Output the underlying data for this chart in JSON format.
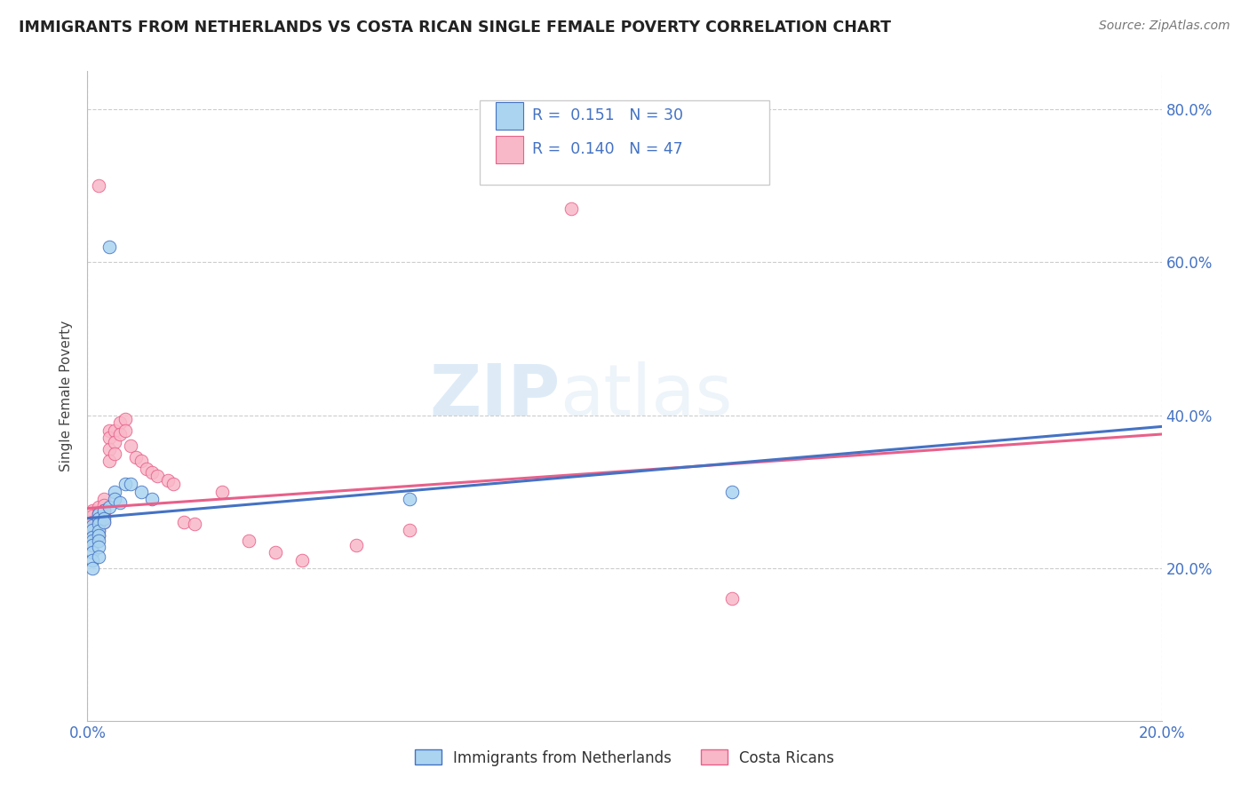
{
  "title": "IMMIGRANTS FROM NETHERLANDS VS COSTA RICAN SINGLE FEMALE POVERTY CORRELATION CHART",
  "source": "Source: ZipAtlas.com",
  "ylabel_label": "Single Female Poverty",
  "legend_label1": "Immigrants from Netherlands",
  "legend_label2": "Costa Ricans",
  "r1": "0.151",
  "n1": "30",
  "r2": "0.140",
  "n2": "47",
  "xlim": [
    0.0,
    0.2
  ],
  "ylim": [
    0.0,
    0.85
  ],
  "color_blue": "#aad4f0",
  "color_pink": "#f9b8c8",
  "line_blue": "#4472C4",
  "line_pink": "#e8608a",
  "watermark_zip": "ZIP",
  "watermark_atlas": "atlas",
  "blue_scatter": [
    [
      0.001,
      0.255
    ],
    [
      0.001,
      0.25
    ],
    [
      0.001,
      0.24
    ],
    [
      0.001,
      0.235
    ],
    [
      0.001,
      0.23
    ],
    [
      0.001,
      0.22
    ],
    [
      0.001,
      0.21
    ],
    [
      0.001,
      0.2
    ],
    [
      0.002,
      0.27
    ],
    [
      0.002,
      0.265
    ],
    [
      0.002,
      0.258
    ],
    [
      0.002,
      0.248
    ],
    [
      0.002,
      0.242
    ],
    [
      0.002,
      0.235
    ],
    [
      0.002,
      0.228
    ],
    [
      0.002,
      0.215
    ],
    [
      0.003,
      0.275
    ],
    [
      0.003,
      0.265
    ],
    [
      0.003,
      0.26
    ],
    [
      0.004,
      0.62
    ],
    [
      0.004,
      0.28
    ],
    [
      0.005,
      0.3
    ],
    [
      0.005,
      0.29
    ],
    [
      0.006,
      0.285
    ],
    [
      0.007,
      0.31
    ],
    [
      0.008,
      0.31
    ],
    [
      0.01,
      0.3
    ],
    [
      0.012,
      0.29
    ],
    [
      0.06,
      0.29
    ],
    [
      0.12,
      0.3
    ]
  ],
  "pink_scatter": [
    [
      0.001,
      0.275
    ],
    [
      0.001,
      0.268
    ],
    [
      0.001,
      0.26
    ],
    [
      0.001,
      0.252
    ],
    [
      0.001,
      0.245
    ],
    [
      0.001,
      0.238
    ],
    [
      0.002,
      0.28
    ],
    [
      0.002,
      0.272
    ],
    [
      0.002,
      0.265
    ],
    [
      0.002,
      0.258
    ],
    [
      0.002,
      0.25
    ],
    [
      0.002,
      0.243
    ],
    [
      0.002,
      0.7
    ],
    [
      0.003,
      0.29
    ],
    [
      0.003,
      0.282
    ],
    [
      0.003,
      0.275
    ],
    [
      0.003,
      0.268
    ],
    [
      0.003,
      0.26
    ],
    [
      0.004,
      0.38
    ],
    [
      0.004,
      0.37
    ],
    [
      0.004,
      0.355
    ],
    [
      0.004,
      0.34
    ],
    [
      0.005,
      0.38
    ],
    [
      0.005,
      0.365
    ],
    [
      0.005,
      0.35
    ],
    [
      0.006,
      0.39
    ],
    [
      0.006,
      0.375
    ],
    [
      0.007,
      0.395
    ],
    [
      0.007,
      0.38
    ],
    [
      0.008,
      0.36
    ],
    [
      0.009,
      0.345
    ],
    [
      0.01,
      0.34
    ],
    [
      0.011,
      0.33
    ],
    [
      0.012,
      0.325
    ],
    [
      0.013,
      0.32
    ],
    [
      0.015,
      0.315
    ],
    [
      0.016,
      0.31
    ],
    [
      0.018,
      0.26
    ],
    [
      0.02,
      0.258
    ],
    [
      0.025,
      0.3
    ],
    [
      0.03,
      0.235
    ],
    [
      0.035,
      0.22
    ],
    [
      0.04,
      0.21
    ],
    [
      0.05,
      0.23
    ],
    [
      0.06,
      0.25
    ],
    [
      0.09,
      0.67
    ],
    [
      0.12,
      0.16
    ]
  ]
}
